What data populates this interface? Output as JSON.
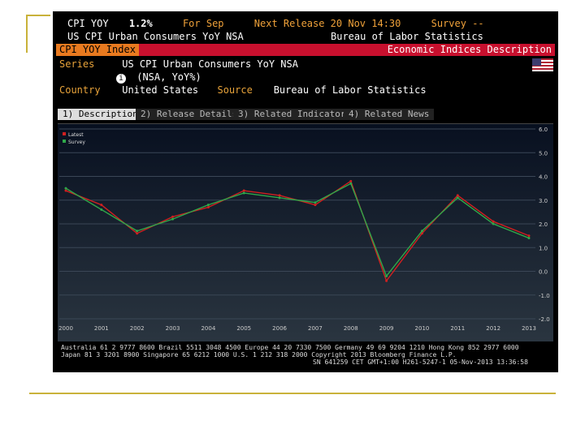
{
  "header": {
    "ticker": "CPI YOY",
    "value": "1.2%",
    "period": "For Sep",
    "next_release": "Next Release 20 Nov 14:30",
    "survey": "Survey --",
    "name": "US CPI Urban Consumers YoY NSA",
    "source_top": "Bureau of Labor Statistics"
  },
  "bar": {
    "index_label": "CPI YOY Index",
    "desc_label": "Economic Indices Description"
  },
  "info": {
    "series_label": "Series",
    "series_value": "US CPI Urban Consumers YoY NSA",
    "info_icon": "info-icon",
    "info_value": "(NSA, YoY%)",
    "country_label": "Country",
    "country_value": "United States",
    "source_label": "Source",
    "source_value": "Bureau of Labor Statistics"
  },
  "tabs": [
    {
      "label": "1) Description"
    },
    {
      "label": "2) Release Details"
    },
    {
      "label": "3) Related Indicators"
    },
    {
      "label": "4) Related News"
    }
  ],
  "chart_data": {
    "type": "line",
    "x": [
      "2000",
      "2001",
      "2002",
      "2003",
      "2004",
      "2005",
      "2006",
      "2007",
      "2008",
      "2009",
      "2010",
      "2011",
      "2012",
      "2013"
    ],
    "series": [
      {
        "name": "Latest",
        "color": "#d02020",
        "values": [
          3.4,
          2.8,
          1.6,
          2.3,
          2.7,
          3.4,
          3.2,
          2.8,
          3.8,
          -0.4,
          1.6,
          3.2,
          2.1,
          1.5
        ]
      },
      {
        "name": "Survey",
        "color": "#2fa84a",
        "values": [
          3.5,
          2.6,
          1.7,
          2.2,
          2.8,
          3.3,
          3.1,
          2.9,
          3.7,
          -0.2,
          1.7,
          3.1,
          2.0,
          1.4
        ]
      }
    ],
    "ylim": [
      -2,
      6
    ],
    "yticks": [
      "6.0",
      "5.0",
      "4.0",
      "3.0",
      "2.0",
      "1.0",
      "0.0",
      "-1.0",
      "-2.0"
    ],
    "legend": "top-left"
  },
  "footer": {
    "line1": "Australia 61 2 9777 8600 Brazil 5511 3048 4500 Europe 44 20 7330 7500 Germany 49 69 9204 1210 Hong Kong 852 2977 6000",
    "line2": "Japan 81 3 3201 8900      Singapore 65 6212 1000      U.S. 1 212 318 2000       Copyright 2013 Bloomberg Finance L.P.",
    "line3": "SN 641259 CET  GMT+1:00 H261-5247-1 05-Nov-2013 13:36:58"
  }
}
